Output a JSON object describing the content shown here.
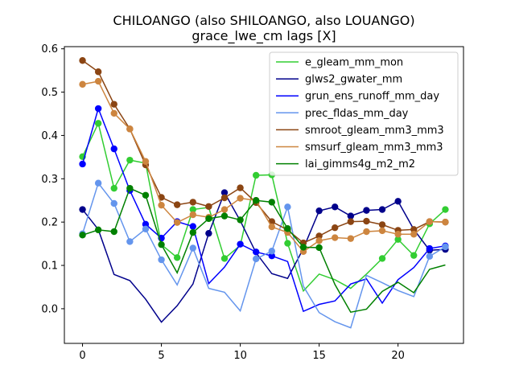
{
  "chart_data": {
    "type": "line",
    "title": "CHILOANGO (also SHILOANGO, also LOUANGO)",
    "subtitle": "grace_lwe_cm lags [X]",
    "xlabel": "",
    "ylabel": "",
    "xlim": [
      -1.15,
      24.15
    ],
    "ylim": [
      -0.08,
      0.605
    ],
    "xticks": [
      0,
      5,
      10,
      15,
      20
    ],
    "yticks": [
      0.0,
      0.1,
      0.2,
      0.3,
      0.4,
      0.5,
      0.6
    ],
    "xtick_labels": [
      "0",
      "5",
      "10",
      "15",
      "20"
    ],
    "ytick_labels": [
      "0.0",
      "0.1",
      "0.2",
      "0.3",
      "0.4",
      "0.5",
      "0.6"
    ],
    "grid": false,
    "legend_position": "upper right",
    "x": [
      0,
      1,
      2,
      3,
      4,
      5,
      6,
      7,
      8,
      9,
      10,
      11,
      12,
      13,
      14,
      15,
      16,
      17,
      18,
      19,
      20,
      21,
      22,
      23
    ],
    "series": [
      {
        "name": "e_gleam_mm_mon",
        "color": "#32cd32",
        "values": [
          0.351,
          0.428,
          0.278,
          0.343,
          0.336,
          0.148,
          0.118,
          0.229,
          0.234,
          0.116,
          0.146,
          0.308,
          0.309,
          0.151,
          0.041,
          0.08,
          0.067,
          0.047,
          0.08,
          0.116,
          0.16,
          0.123,
          0.196,
          0.229
        ],
        "markers": [
          0,
          1,
          2,
          3,
          6,
          7,
          9,
          11,
          12,
          13,
          19,
          20,
          21,
          22,
          23
        ]
      },
      {
        "name": "glws2_gwater_mm",
        "color": "#00008b",
        "values": [
          0.229,
          0.183,
          0.079,
          0.065,
          0.022,
          -0.031,
          0.007,
          0.057,
          0.174,
          0.268,
          0.203,
          0.129,
          0.081,
          0.07,
          0.139,
          0.226,
          0.235,
          0.214,
          0.227,
          0.229,
          0.248,
          0.183,
          0.135,
          0.137
        ],
        "markers": [
          0,
          8,
          9,
          15,
          16,
          17,
          18,
          19,
          20,
          22,
          23
        ]
      },
      {
        "name": "grun_ens_runoff_mm_day",
        "color": "#0000ff",
        "values": [
          0.334,
          0.462,
          0.369,
          0.273,
          0.195,
          0.163,
          0.201,
          0.19,
          0.058,
          0.096,
          0.149,
          0.131,
          0.122,
          0.109,
          -0.006,
          0.01,
          0.018,
          0.057,
          0.069,
          0.013,
          0.067,
          0.095,
          0.139,
          0.145
        ],
        "markers": [
          0,
          1,
          2,
          3,
          4,
          5,
          6,
          7,
          10,
          11,
          12,
          22,
          23
        ]
      },
      {
        "name": "prec_fldas_mm_day",
        "color": "#6495ed",
        "values": [
          0.173,
          0.29,
          0.243,
          0.155,
          0.184,
          0.113,
          0.055,
          0.14,
          0.047,
          0.038,
          -0.005,
          0.115,
          0.133,
          0.235,
          0.052,
          -0.009,
          -0.03,
          -0.044,
          0.077,
          0.06,
          0.042,
          0.028,
          0.121,
          0.143
        ],
        "markers": [
          0,
          1,
          2,
          3,
          4,
          5,
          7,
          11,
          12,
          13,
          22,
          23
        ]
      },
      {
        "name": "smroot_gleam_mm3_mm3",
        "color": "#8b4513",
        "values": [
          0.573,
          0.547,
          0.472,
          0.415,
          0.332,
          0.257,
          0.24,
          0.246,
          0.236,
          0.256,
          0.279,
          0.245,
          0.201,
          0.182,
          0.152,
          0.168,
          0.187,
          0.201,
          0.202,
          0.194,
          0.181,
          0.183,
          0.201,
          0.2
        ],
        "markers": [
          0,
          1,
          2,
          3,
          4,
          5,
          6,
          7,
          8,
          9,
          10,
          11,
          12,
          13,
          14,
          15,
          16,
          17,
          18,
          19,
          20,
          21,
          22,
          23
        ]
      },
      {
        "name": "smsurf_gleam_mm3_mm3",
        "color": "#cd853f",
        "values": [
          0.518,
          0.525,
          0.451,
          0.415,
          0.34,
          0.239,
          0.199,
          0.217,
          0.211,
          0.229,
          0.255,
          0.25,
          0.189,
          0.176,
          0.132,
          0.157,
          0.164,
          0.162,
          0.178,
          0.18,
          0.172,
          0.172,
          0.201,
          0.2
        ],
        "markers": [
          0,
          1,
          2,
          3,
          4,
          5,
          6,
          7,
          8,
          9,
          10,
          11,
          12,
          13,
          14,
          15,
          16,
          17,
          18,
          19,
          20,
          21,
          22,
          23
        ]
      },
      {
        "name": "lai_gimms4g_m2_m2",
        "color": "#008000",
        "values": [
          0.17,
          0.182,
          0.178,
          0.278,
          0.262,
          0.148,
          0.083,
          0.176,
          0.208,
          0.214,
          0.205,
          0.25,
          0.246,
          0.185,
          0.142,
          0.141,
          0.056,
          -0.008,
          -0.001,
          0.04,
          0.061,
          0.037,
          0.091,
          0.101
        ],
        "markers": [
          0,
          1,
          2,
          3,
          4,
          5,
          7,
          8,
          9,
          10,
          11,
          12,
          13,
          14,
          15
        ]
      }
    ]
  }
}
